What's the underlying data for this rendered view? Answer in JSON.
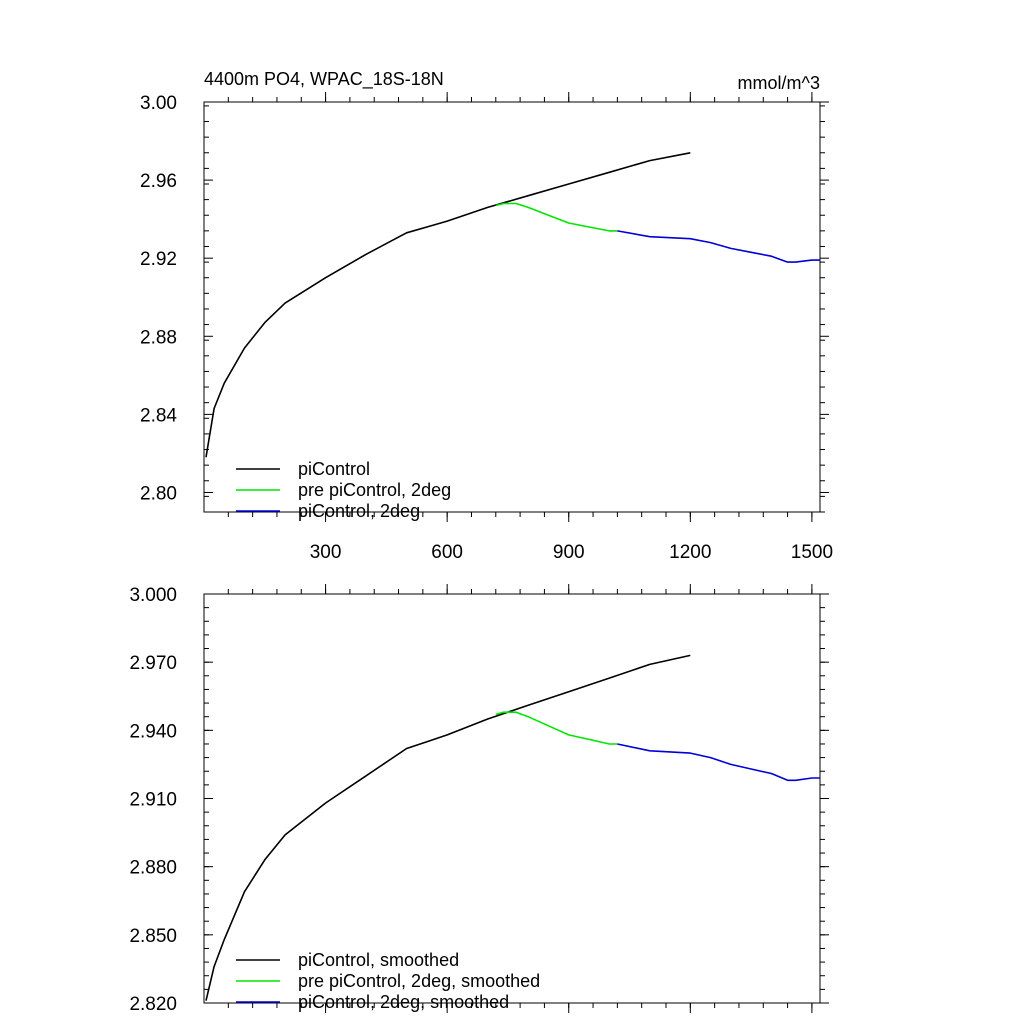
{
  "chart_data": [
    {
      "type": "line",
      "title": "4400m PO4, WPAC_18S-18N",
      "units": "mmol/m^3",
      "xlabel": "",
      "ylabel": "",
      "xlim": [
        0,
        1520
      ],
      "ylim": [
        2.79,
        3.0
      ],
      "xticks": [
        "300",
        "600",
        "900",
        "1200",
        "1500"
      ],
      "yticks": [
        "2.80",
        "2.84",
        "2.88",
        "2.92",
        "2.96",
        "3.00"
      ],
      "legend_position": "bottom-left",
      "series": [
        {
          "name": "piControl",
          "color": "#000000",
          "x": [
            5,
            25,
            50,
            100,
            150,
            200,
            300,
            400,
            500,
            550,
            600,
            700,
            800,
            900,
            1000,
            1100,
            1200
          ],
          "y": [
            2.818,
            2.843,
            2.856,
            2.874,
            2.887,
            2.897,
            2.91,
            2.922,
            2.933,
            2.936,
            2.939,
            2.946,
            2.952,
            2.958,
            2.964,
            2.97,
            2.974
          ]
        },
        {
          "name": "pre piControl, 2deg",
          "color": "#00e600",
          "x": [
            720,
            740,
            770,
            800,
            850,
            900,
            950,
            1000,
            1020
          ],
          "y": [
            2.947,
            2.948,
            2.948,
            2.946,
            2.942,
            2.938,
            2.936,
            2.934,
            2.934
          ]
        },
        {
          "name": "piControl, 2deg",
          "color": "#0000d8",
          "x": [
            1020,
            1100,
            1200,
            1250,
            1300,
            1350,
            1400,
            1440,
            1460,
            1500,
            1520
          ],
          "y": [
            2.934,
            2.931,
            2.93,
            2.928,
            2.925,
            2.923,
            2.921,
            2.918,
            2.918,
            2.919,
            2.919
          ]
        }
      ]
    },
    {
      "type": "line",
      "xlim": [
        0,
        1520
      ],
      "ylim": [
        2.82,
        3.0
      ],
      "xticks": [
        "",
        "",
        "",
        "",
        ""
      ],
      "yticks": [
        "2.820",
        "2.850",
        "2.880",
        "2.910",
        "2.940",
        "2.970",
        "3.000"
      ],
      "legend_position": "bottom-left",
      "series": [
        {
          "name": "piControl, smoothed",
          "color": "#000000",
          "x": [
            5,
            25,
            50,
            100,
            150,
            200,
            300,
            400,
            500,
            550,
            600,
            700,
            800,
            900,
            1000,
            1100,
            1200
          ],
          "y": [
            2.821,
            2.836,
            2.848,
            2.869,
            2.883,
            2.894,
            2.908,
            2.92,
            2.932,
            2.935,
            2.938,
            2.945,
            2.951,
            2.957,
            2.963,
            2.969,
            2.973
          ]
        },
        {
          "name": "pre piControl, 2deg, smoothed",
          "color": "#00e600",
          "x": [
            720,
            740,
            770,
            800,
            850,
            900,
            950,
            1000,
            1020
          ],
          "y": [
            2.947,
            2.948,
            2.948,
            2.946,
            2.942,
            2.938,
            2.936,
            2.934,
            2.934
          ]
        },
        {
          "name": "piControl, 2deg, smoothed",
          "color": "#0000d8",
          "x": [
            1020,
            1100,
            1200,
            1250,
            1300,
            1350,
            1400,
            1440,
            1460,
            1500,
            1520
          ],
          "y": [
            2.934,
            2.931,
            2.93,
            2.928,
            2.925,
            2.923,
            2.921,
            2.918,
            2.918,
            2.919,
            2.919
          ]
        }
      ]
    }
  ]
}
